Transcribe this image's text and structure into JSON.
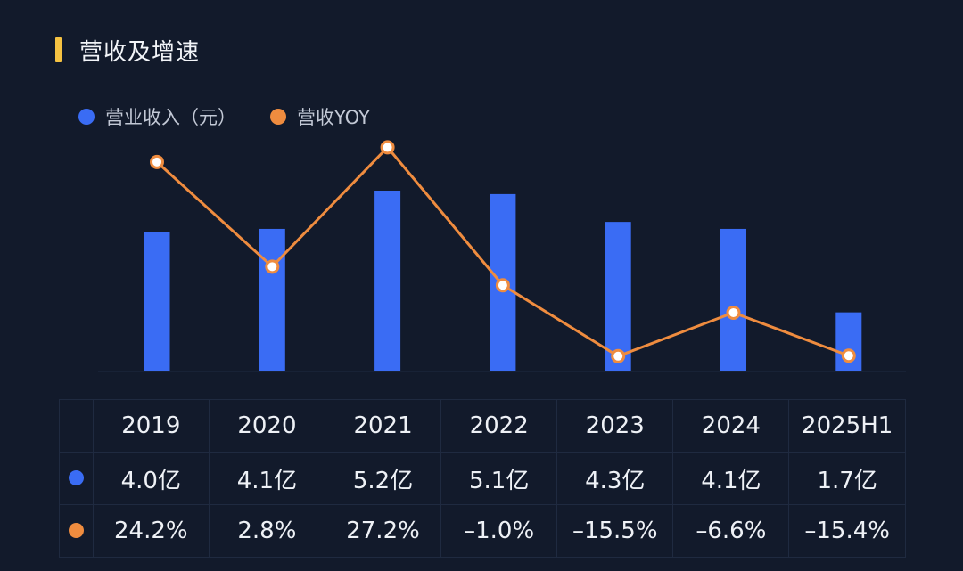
{
  "title": "营收及增速",
  "colors": {
    "accent": "#f5c242",
    "bar": "#3a6cf4",
    "line": "#ef8c3f",
    "background": "#121a2b"
  },
  "legend": {
    "revenue": "营业收入（元）",
    "yoy": "营收YOY"
  },
  "chart_data": {
    "type": "bar",
    "title": "营收及增速",
    "categories": [
      "2019",
      "2020",
      "2021",
      "2022",
      "2023",
      "2024",
      "2025H1"
    ],
    "series": [
      {
        "name": "营业收入（元）",
        "type": "bar",
        "unit": "亿",
        "values": [
          4.0,
          4.1,
          5.2,
          5.1,
          4.3,
          4.1,
          1.7
        ]
      },
      {
        "name": "营收YOY",
        "type": "line",
        "unit": "%",
        "values": [
          24.2,
          2.8,
          27.2,
          -1.0,
          -15.5,
          -6.6,
          -15.4
        ]
      }
    ],
    "ylim_revenue": [
      0,
      5.2
    ],
    "ylim_yoy": [
      -21,
      30
    ],
    "grid": false,
    "legend_position": "top-left"
  },
  "table": {
    "years": [
      "2019",
      "2020",
      "2021",
      "2022",
      "2023",
      "2024",
      "2025H1"
    ],
    "revenue_row": [
      "4.0亿",
      "4.1亿",
      "5.2亿",
      "5.1亿",
      "4.3亿",
      "4.1亿",
      "1.7亿"
    ],
    "yoy_row": [
      "24.2%",
      "2.8%",
      "27.2%",
      "–1.0%",
      "–15.5%",
      "–6.6%",
      "–15.4%"
    ]
  }
}
